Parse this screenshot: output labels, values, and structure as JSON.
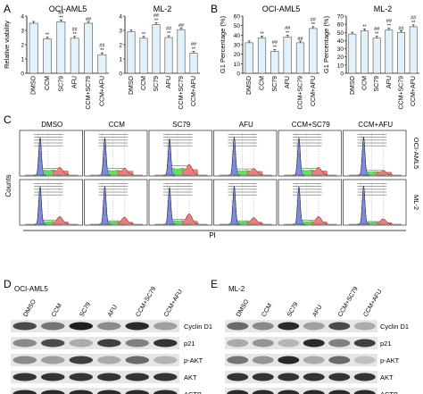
{
  "panel_labels": [
    "A",
    "B",
    "C",
    "D",
    "E"
  ],
  "colors": {
    "bar": "#e3f1fa",
    "bar_edge": "#4f4f4f",
    "pi_blue": "#7f8ad8",
    "pi_green": "#66dd66",
    "pi_red": "#e98080",
    "blot_band": "#202020",
    "blot_bg": "#e6e6e6",
    "grid": "#6aa8cf"
  },
  "chart_data": [
    {
      "type": "bar",
      "panel": "A",
      "title": "OCI-AML5",
      "ylabel": "Relative viability",
      "categories": [
        "DMSO",
        "CCM",
        "SC79",
        "AFU",
        "CCM+SC79",
        "CCM+AFU"
      ],
      "values": [
        3.5,
        2.4,
        3.6,
        2.45,
        3.5,
        1.3
      ],
      "ylim": [
        0,
        4
      ],
      "yticks": [
        0,
        1,
        2,
        3,
        4
      ],
      "annotations": [
        "",
        "**",
        "##\n**",
        "##\n**",
        "##",
        "##\n**"
      ]
    },
    {
      "type": "bar",
      "panel": "A",
      "title": "ML-2",
      "ylabel": "",
      "categories": [
        "DMSO",
        "CCM",
        "SC79",
        "AFU",
        "CCM+SC79",
        "CCM+AFU"
      ],
      "values": [
        2.9,
        2.45,
        3.4,
        2.5,
        3.05,
        1.4
      ],
      "ylim": [
        0,
        4
      ],
      "yticks": [
        0,
        1,
        2,
        3,
        4
      ],
      "annotations": [
        "",
        "**",
        "##\n**",
        "##\n**",
        "##",
        "##\n**"
      ]
    },
    {
      "type": "bar",
      "panel": "B",
      "title": "OCI-AML5",
      "ylabel": "G1 Percentage (%)",
      "categories": [
        "DMSO",
        "CCM",
        "SC79",
        "AFU",
        "CCM+SC79",
        "CCM+AFU"
      ],
      "values": [
        32,
        37,
        23,
        38,
        32,
        47
      ],
      "ylim": [
        0,
        60
      ],
      "yticks": [
        0,
        10,
        20,
        30,
        40,
        50,
        60
      ],
      "annotations": [
        "",
        "**",
        "##\n**",
        "##\n**",
        "##",
        "##\n**"
      ]
    },
    {
      "type": "bar",
      "panel": "B",
      "title": "ML-2",
      "ylabel": "G1 Percentage (%)",
      "categories": [
        "DMSO",
        "CCM",
        "SC79",
        "AFU",
        "CCM+SC79",
        "CCM+AFU"
      ],
      "values": [
        48,
        52,
        43,
        53,
        50,
        57
      ],
      "ylim": [
        0,
        70
      ],
      "yticks": [
        0,
        10,
        20,
        30,
        40,
        50,
        60,
        70
      ],
      "annotations": [
        "",
        "**",
        "##\n**",
        "##\n**",
        "##",
        "##\n**"
      ]
    }
  ],
  "flow": {
    "columns": [
      "DMSO",
      "CCM",
      "SC79",
      "AFU",
      "CCM+SC79",
      "CCM+AFU"
    ],
    "rows": [
      "OCI-AML5",
      "ML-2"
    ],
    "ylabel": "Counts",
    "xlabel": "PI",
    "g1_peak": [
      [
        0.98,
        0.97,
        0.95,
        0.99,
        0.97,
        1.0
      ],
      [
        0.98,
        0.99,
        0.96,
        0.99,
        0.98,
        1.0
      ]
    ],
    "g2_peak": [
      [
        0.2,
        0.18,
        0.28,
        0.17,
        0.2,
        0.12
      ],
      [
        0.2,
        0.18,
        0.27,
        0.17,
        0.2,
        0.14
      ]
    ],
    "s_level": [
      [
        0.18,
        0.17,
        0.24,
        0.16,
        0.18,
        0.12
      ],
      [
        0.1,
        0.09,
        0.13,
        0.09,
        0.1,
        0.07
      ]
    ]
  },
  "blot_d": {
    "title": "OCI-AML5",
    "lanes": [
      "DMSO",
      "CCM",
      "SC79",
      "AFU",
      "CCM+SC79",
      "CCM+AFU"
    ],
    "proteins": [
      "Cyclin D1",
      "p21",
      "p-AKT",
      "AKT",
      "ACTB"
    ],
    "intensity": [
      [
        0.75,
        0.55,
        0.95,
        0.45,
        0.9,
        0.35
      ],
      [
        0.45,
        0.75,
        0.3,
        0.8,
        0.5,
        0.85
      ],
      [
        0.45,
        0.35,
        0.8,
        0.3,
        0.6,
        0.25
      ],
      [
        0.85,
        0.85,
        0.85,
        0.85,
        0.85,
        0.85
      ],
      [
        0.9,
        0.9,
        0.9,
        0.9,
        0.9,
        0.9
      ]
    ]
  },
  "blot_e": {
    "title": "ML-2",
    "lanes": [
      "DMSO",
      "CCM",
      "SC79",
      "AFU",
      "CCM+SC79",
      "CCM+AFU"
    ],
    "proteins": [
      "Cyclin D1",
      "p21",
      "p-AKT",
      "AKT",
      "ACTB"
    ],
    "intensity": [
      [
        0.6,
        0.45,
        0.9,
        0.35,
        0.75,
        0.3
      ],
      [
        0.3,
        0.4,
        0.25,
        0.9,
        0.5,
        0.8
      ],
      [
        0.55,
        0.4,
        0.9,
        0.3,
        0.6,
        0.2
      ],
      [
        0.85,
        0.85,
        0.85,
        0.85,
        0.85,
        0.85
      ],
      [
        0.9,
        0.9,
        0.9,
        0.9,
        0.9,
        0.9
      ]
    ]
  }
}
